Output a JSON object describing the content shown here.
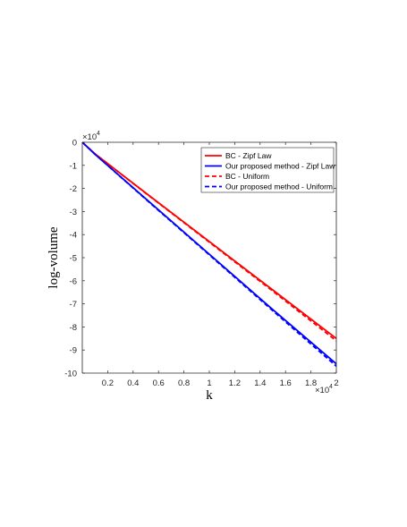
{
  "chart_data": {
    "type": "line",
    "title": "",
    "xlabel": "k",
    "ylabel": "log-volume",
    "x_multiplier": "×10",
    "x_multiplier_exp": "4",
    "y_multiplier": "×10",
    "y_multiplier_exp": "4",
    "xlim": [
      0,
      2
    ],
    "ylim": [
      -10,
      0
    ],
    "xticks": [
      0.2,
      0.4,
      0.6,
      0.8,
      1,
      1.2,
      1.4,
      1.6,
      1.8,
      2
    ],
    "xtick_labels": [
      "0.2",
      "0.4",
      "0.6",
      "0.8",
      "1",
      "1.2",
      "1.4",
      "1.6",
      "1.8",
      "2"
    ],
    "yticks": [
      0,
      -1,
      -2,
      -3,
      -4,
      -5,
      -6,
      -7,
      -8,
      -9,
      -10
    ],
    "ytick_labels": [
      "0",
      "-1",
      "-2",
      "-3",
      "-4",
      "-5",
      "-6",
      "-7",
      "-8",
      "-9",
      "-10"
    ],
    "grid": false,
    "legend_position": "top-right",
    "series": [
      {
        "name": "BC - Zipf Law",
        "color": "#ff0000",
        "dash": "solid",
        "x": [
          0,
          0.1,
          0.5,
          1,
          1.5,
          2
        ],
        "y": [
          0,
          -0.5,
          -2.2,
          -4.3,
          -6.4,
          -8.5
        ]
      },
      {
        "name": "Our proposed method - Zipf Law",
        "color": "#0000ff",
        "dash": "solid",
        "x": [
          0,
          0.1,
          0.5,
          1,
          1.5,
          2
        ],
        "y": [
          0,
          -0.52,
          -2.45,
          -4.85,
          -7.25,
          -9.6
        ]
      },
      {
        "name": "BC - Uniform",
        "color": "#ff0000",
        "dash": "dashed",
        "x": [
          0,
          0.1,
          0.5,
          1,
          1.5,
          2
        ],
        "y": [
          0,
          -0.5,
          -2.21,
          -4.33,
          -6.45,
          -8.6
        ]
      },
      {
        "name": "Our proposed method - Uniform",
        "color": "#0000ff",
        "dash": "dashed",
        "x": [
          0,
          0.1,
          0.5,
          1,
          1.5,
          2
        ],
        "y": [
          0,
          -0.52,
          -2.47,
          -4.88,
          -7.3,
          -9.7
        ]
      }
    ]
  }
}
